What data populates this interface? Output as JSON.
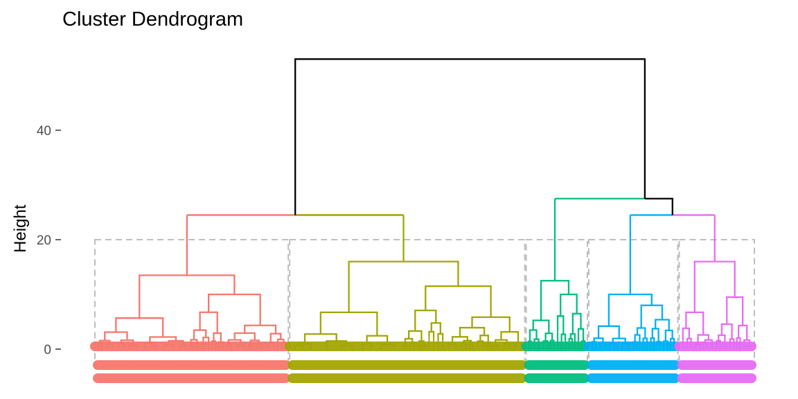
{
  "chart_data": {
    "type": "dendrogram",
    "title": "Cluster Dendrogram",
    "xlabel": "",
    "ylabel": "Height",
    "ylim": [
      -6,
      55
    ],
    "yticks": [
      0,
      20,
      40
    ],
    "cut_height": 20,
    "root": {
      "height": 53,
      "left_child_height": 24.5,
      "right_child_height": 27.5
    },
    "right_subtree_split": {
      "height": 24.5
    },
    "clusters": [
      {
        "id": 1,
        "color": "#F8766D",
        "merge_height": 24.5,
        "top_split_height": 13.5,
        "left_subgroup_height": 13.5,
        "right_subgroup_height": 10,
        "leaf_count": 140
      },
      {
        "id": 2,
        "color": "#A3A500",
        "merge_height": 24.5,
        "top_split_height": 16,
        "left_subgroup_height": 16,
        "right_subgroup_height": 11.5,
        "leaf_count": 170
      },
      {
        "id": 3,
        "color": "#00BF7D",
        "merge_height": 27.5,
        "top_split_height": 12.5,
        "left_subgroup_height": 12.5,
        "right_subgroup_height": 10,
        "leaf_count": 45
      },
      {
        "id": 4,
        "color": "#00B0F6",
        "merge_height": 24.5,
        "top_split_height": 10,
        "left_subgroup_height": 10,
        "right_subgroup_height": 8,
        "leaf_count": 65
      },
      {
        "id": 5,
        "color": "#E76BF3",
        "merge_height": 24.5,
        "top_split_height": 16,
        "left_subgroup_height": 16,
        "right_subgroup_height": 9.5,
        "leaf_count": 55
      }
    ]
  }
}
